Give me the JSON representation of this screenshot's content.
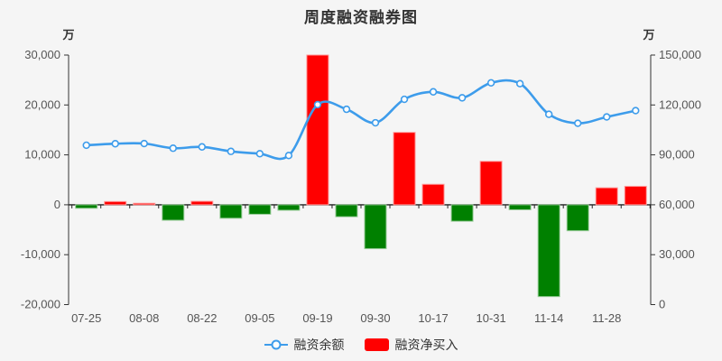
{
  "title": "周度融资融券图",
  "legend": {
    "items": [
      {
        "label": "融资余额",
        "marker": "line-circle",
        "color": "#3D9CEB"
      },
      {
        "label": "融资净买入",
        "marker": "rect",
        "color": "#FF0000"
      }
    ]
  },
  "chart_data": {
    "type": "bar+line",
    "title": "周度融资融券图",
    "x_count": 20,
    "x_tick_labels": [
      {
        "index": 0,
        "label": "07-25"
      },
      {
        "index": 2,
        "label": "08-08"
      },
      {
        "index": 4,
        "label": "08-22"
      },
      {
        "index": 6,
        "label": "09-05"
      },
      {
        "index": 8,
        "label": "09-19"
      },
      {
        "index": 10,
        "label": "09-30"
      },
      {
        "index": 12,
        "label": "10-17"
      },
      {
        "index": 14,
        "label": "10-31"
      },
      {
        "index": 16,
        "label": "11-14"
      },
      {
        "index": 18,
        "label": "11-28"
      }
    ],
    "left_axis": {
      "unit": "万",
      "range": [
        -20000,
        30000
      ],
      "ticks": [
        {
          "value": 30000,
          "label": "30,000"
        },
        {
          "value": 20000,
          "label": "20,000"
        },
        {
          "value": 10000,
          "label": "10,000"
        },
        {
          "value": 0,
          "label": "0"
        },
        {
          "value": -10000,
          "label": "-10,000"
        },
        {
          "value": -20000,
          "label": "-20,000"
        }
      ]
    },
    "right_axis": {
      "unit": "万",
      "range": [
        0,
        150000
      ],
      "ticks": [
        {
          "value": 150000,
          "label": "150,000"
        },
        {
          "value": 120000,
          "label": "120,000"
        },
        {
          "value": 90000,
          "label": "90,000"
        },
        {
          "value": 60000,
          "label": "60,000"
        },
        {
          "value": 30000,
          "label": "30,000"
        },
        {
          "value": 0,
          "label": "0"
        }
      ]
    },
    "series": [
      {
        "name": "融资余额",
        "type": "line",
        "axis": "right",
        "color": "#3D9CEB",
        "marker": "circle",
        "values": [
          95800,
          96700,
          96800,
          94000,
          94800,
          92100,
          90700,
          89600,
          120200,
          117400,
          109300,
          123400,
          127900,
          124300,
          133300,
          132800,
          114400,
          109000,
          112800,
          116600
        ]
      },
      {
        "name": "融资净买入",
        "type": "bar",
        "axis": "left",
        "color_positive": "#FF0000",
        "color_negative": "#008000",
        "edge_positive": "#FF9999",
        "edge_negative": "#99CC99",
        "values": [
          -700,
          650,
          300,
          -3100,
          700,
          -2700,
          -1900,
          -1100,
          30000,
          -2400,
          -8800,
          14500,
          4100,
          -3300,
          8700,
          -1000,
          -18400,
          -5200,
          3400,
          3700
        ]
      }
    ],
    "layout": {
      "background": "#F5F5F5",
      "axis_color": "#333333",
      "tick_text_color": "#555555",
      "grid": "off",
      "legend_position": "bottom"
    }
  }
}
